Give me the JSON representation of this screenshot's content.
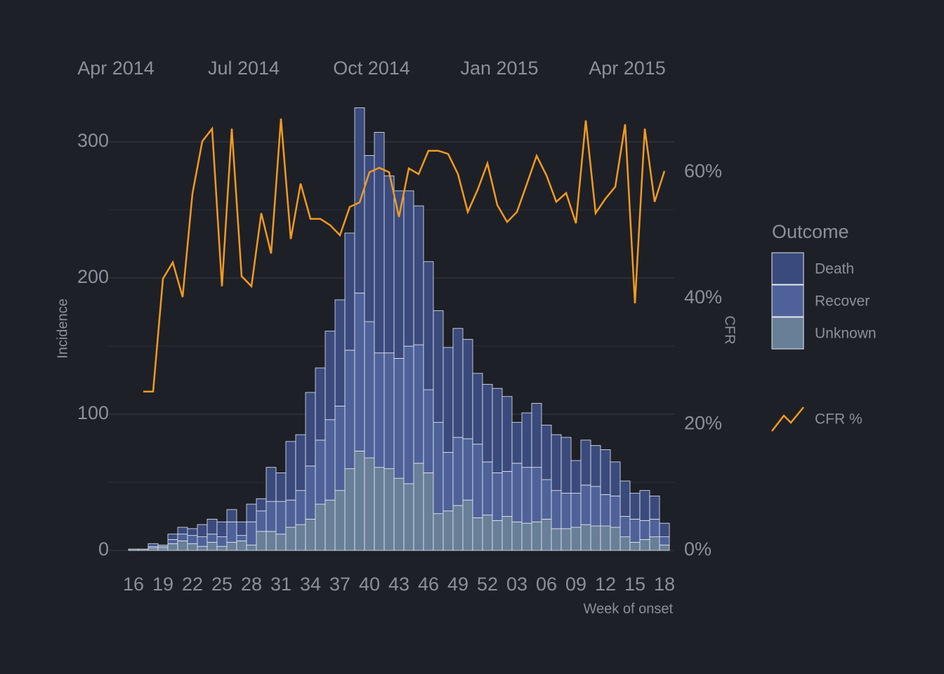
{
  "chart_data": {
    "type": "bar",
    "x_label": "Week of onset",
    "y_label": "Incidence",
    "y2_label": "CFR",
    "legend_title": "Outcome",
    "top_labels": [
      "Apr 2014",
      "Jul 2014",
      "Oct 2014",
      "Jan 2015",
      "Apr 2015"
    ],
    "categories": [
      "16",
      null,
      null,
      "19",
      null,
      null,
      "22",
      null,
      null,
      "25",
      null,
      null,
      "28",
      null,
      null,
      "31",
      null,
      null,
      "34",
      null,
      null,
      "37",
      null,
      null,
      "40",
      null,
      null,
      "43",
      null,
      null,
      "46",
      null,
      null,
      "49",
      null,
      null,
      "52",
      null,
      null,
      "03",
      null,
      null,
      "06",
      null,
      null,
      "09",
      null,
      null,
      "12",
      null,
      null,
      "15",
      null,
      null,
      "18"
    ],
    "series": [
      {
        "name": "Death",
        "color": "#3a4a7c",
        "values": [
          0,
          0,
          2,
          1,
          4,
          5,
          5,
          9,
          11,
          11,
          9,
          10,
          13,
          9,
          25,
          21,
          43,
          41,
          54,
          53,
          65,
          78,
          86,
          136,
          122,
          162,
          130,
          123,
          114,
          102,
          94,
          82,
          77,
          80,
          73,
          52,
          57,
          62,
          55,
          30,
          40,
          47,
          40,
          41,
          41,
          24,
          33,
          30,
          33,
          25,
          26,
          19,
          22,
          17,
          10
        ]
      },
      {
        "name": "Recover",
        "color": "#4e6299",
        "values": [
          0,
          0,
          1,
          1,
          3,
          5,
          6,
          7,
          6,
          7,
          15,
          4,
          17,
          15,
          22,
          24,
          20,
          25,
          39,
          47,
          59,
          62,
          87,
          116,
          100,
          84,
          85,
          88,
          101,
          87,
          61,
          67,
          43,
          50,
          45,
          54,
          39,
          35,
          33,
          43,
          41,
          40,
          29,
          28,
          26,
          25,
          29,
          29,
          23,
          23,
          15,
          17,
          14,
          13,
          6
        ]
      },
      {
        "name": "Unknown",
        "color": "#687f98",
        "values": [
          1,
          1,
          2,
          2,
          5,
          7,
          5,
          3,
          6,
          3,
          6,
          7,
          4,
          14,
          14,
          12,
          17,
          19,
          23,
          34,
          37,
          44,
          60,
          73,
          68,
          61,
          60,
          53,
          49,
          64,
          57,
          27,
          29,
          33,
          37,
          24,
          26,
          22,
          25,
          21,
          20,
          21,
          23,
          16,
          16,
          17,
          19,
          18,
          18,
          17,
          10,
          6,
          8,
          10,
          4
        ]
      },
      {
        "name": "CFR %",
        "color": "#f39a1f",
        "axis": "y2",
        "values": [
          null,
          25.2,
          25.2,
          43.1,
          45.7,
          40.2,
          56.6,
          64.9,
          66.9,
          41.9,
          66.9,
          43.5,
          41.9,
          53.5,
          47.1,
          68.5,
          49.4,
          58.2,
          52.6,
          52.6,
          51.6,
          50.0,
          54.5,
          55.2,
          60.0,
          60.7,
          60.0,
          52.9,
          60.6,
          59.7,
          63.4,
          63.4,
          62.9,
          59.7,
          53.7,
          57.2,
          61.4,
          54.8,
          52.1,
          53.7,
          58.1,
          62.6,
          59.5,
          55.3,
          56.7,
          51.9,
          68.2,
          53.5,
          55.8,
          57.7,
          67.6,
          39.2,
          66.9,
          55.3,
          60.2
        ]
      }
    ],
    "ylim": [
      0,
      330
    ],
    "yticks": [
      0,
      100,
      200,
      300
    ],
    "yminorticks": [
      50,
      150,
      250
    ],
    "y2lim": [
      0,
      71.3
    ],
    "y2ticks": [
      {
        "value": 0,
        "label": "0%"
      },
      {
        "value": 20,
        "label": "20%"
      },
      {
        "value": 40,
        "label": "40%"
      },
      {
        "value": 60,
        "label": "60%"
      }
    ],
    "grid": true
  }
}
